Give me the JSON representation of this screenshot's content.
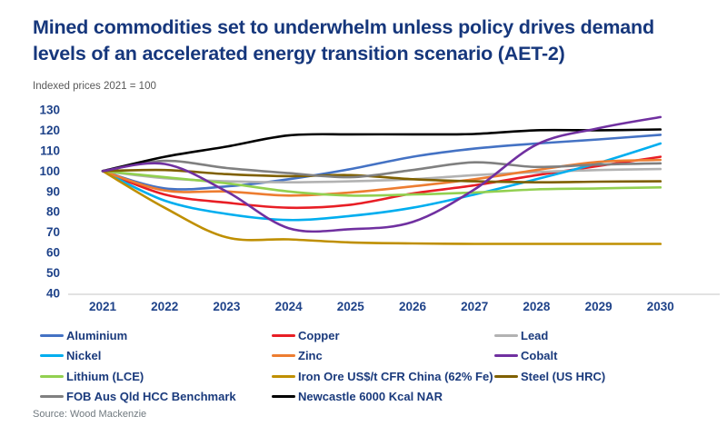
{
  "header": {
    "title_line1": "Mined commodities set to underwhelm unless policy drives demand",
    "title_line2": "levels of an accelerated energy transition scenario (AET-2)",
    "subtitle": "Indexed prices 2021 = 100"
  },
  "source": "Source: Wood Mackenzie",
  "colors": {
    "title_navy": "#16377c",
    "axis_label_navy": "#1e4289",
    "axis_line_gray": "#d9d9d9",
    "subtitle_gray": "#595959",
    "source_gray": "#70797f"
  },
  "chart_data": {
    "type": "line",
    "title": "Mined commodities set to underwhelm unless policy drives demand levels of an accelerated energy transition scenario (AET-2)",
    "subtitle": "Indexed prices 2021 = 100",
    "x": [
      2021,
      2022,
      2023,
      2024,
      2025,
      2026,
      2027,
      2028,
      2029,
      2030
    ],
    "xlabel": "",
    "ylabel": "Indexed price (2021 = 100)",
    "ylim": [
      40,
      130
    ],
    "ytick_step": 10,
    "grid": false,
    "legend_position": "bottom",
    "series": [
      {
        "name": "Aluminium",
        "color": "#4472c4",
        "values": [
          100,
          91.5,
          92.5,
          96,
          101,
          107,
          111,
          113.5,
          115.5,
          117.8
        ]
      },
      {
        "name": "Copper",
        "color": "#e81e25",
        "values": [
          100,
          88.5,
          84.5,
          82,
          83.5,
          89,
          93,
          98,
          102.5,
          107
        ]
      },
      {
        "name": "Lead",
        "color": "#b2b2b2",
        "values": [
          100,
          96.5,
          95,
          94.5,
          95,
          96,
          98,
          99.5,
          100.5,
          101
        ]
      },
      {
        "name": "Nickel",
        "color": "#00aeef",
        "values": [
          100,
          85.5,
          79,
          76,
          78,
          82,
          88.5,
          96,
          104,
          113.5
        ]
      },
      {
        "name": "Zinc",
        "color": "#ed7d31",
        "values": [
          100,
          90.5,
          90,
          88,
          89.5,
          92.5,
          96,
          100.5,
          104.5,
          105.5
        ]
      },
      {
        "name": "Cobalt",
        "color": "#7030a0",
        "values": [
          100,
          103.5,
          90,
          72,
          71.5,
          75,
          91,
          113,
          121,
          126.5
        ]
      },
      {
        "name": "Lithium (LCE)",
        "color": "#92d050",
        "values": [
          100,
          97,
          94,
          90,
          88,
          88.5,
          89.5,
          91,
          91.5,
          92
        ]
      },
      {
        "name": "Iron Ore US$/t CFR China (62% Fe)",
        "color": "#bf8f00",
        "values": [
          100,
          82,
          67.5,
          66.5,
          65,
          64.5,
          64.3,
          64.3,
          64.3,
          64.3
        ]
      },
      {
        "name": "Steel (US HRC)",
        "color": "#7f6000",
        "values": [
          100,
          100.5,
          98.5,
          97.5,
          98,
          96,
          95,
          94.5,
          94.8,
          95
        ]
      },
      {
        "name": "FOB Aus Qld HCC Benchmark",
        "color": "#808080",
        "values": [
          100,
          105,
          101.5,
          99,
          97,
          100.5,
          104.3,
          102,
          103.2,
          103.8
        ]
      },
      {
        "name": "Newcastle 6000 Kcal NAR",
        "color": "#000000",
        "values": [
          100,
          107,
          112,
          117.5,
          118,
          118,
          118.2,
          120,
          120,
          120.4
        ]
      }
    ]
  }
}
